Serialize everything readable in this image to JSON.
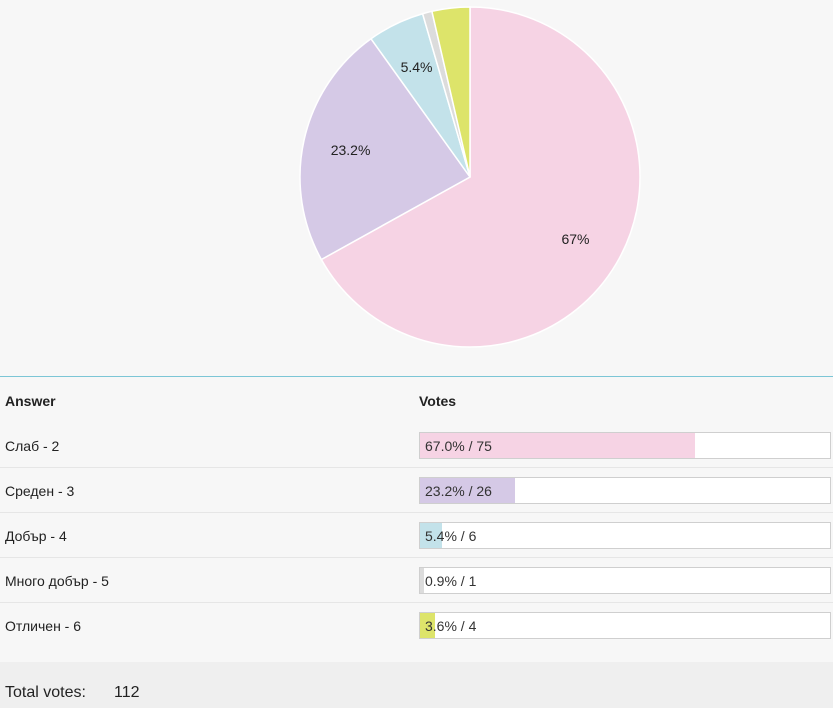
{
  "chart_data": {
    "type": "pie",
    "slices": [
      {
        "label": "Слаб - 2",
        "percent": 67.0,
        "votes": 75,
        "display": "67%",
        "color": "#f6d3e4"
      },
      {
        "label": "Среден - 3",
        "percent": 23.2,
        "votes": 26,
        "display": "23.2%",
        "color": "#d5c9e6"
      },
      {
        "label": "Добър - 4",
        "percent": 5.4,
        "votes": 6,
        "display": "5.4%",
        "color": "#c3e2ea"
      },
      {
        "label": "Много добър - 5",
        "percent": 0.9,
        "votes": 1,
        "display": "",
        "color": "#dcdcdc"
      },
      {
        "label": "Отличен - 6",
        "percent": 3.6,
        "votes": 4,
        "display": "",
        "color": "#dde46a"
      }
    ]
  },
  "table": {
    "header_answer": "Answer",
    "header_votes": "Votes",
    "rows": [
      {
        "answer": "Слаб - 2",
        "bar_text": "67.0% / 75",
        "fraction": 0.67
      },
      {
        "answer": "Среден - 3",
        "bar_text": "23.2% / 26",
        "fraction": 0.232
      },
      {
        "answer": "Добър - 4",
        "bar_text": "5.4% / 6",
        "fraction": 0.054
      },
      {
        "answer": "Много добър - 5",
        "bar_text": "0.9% / 1",
        "fraction": 0.009
      },
      {
        "answer": "Отличен - 6",
        "bar_text": "3.6% / 4",
        "fraction": 0.036
      }
    ]
  },
  "footer": {
    "total_label": "Total votes:",
    "total_value": "112"
  }
}
